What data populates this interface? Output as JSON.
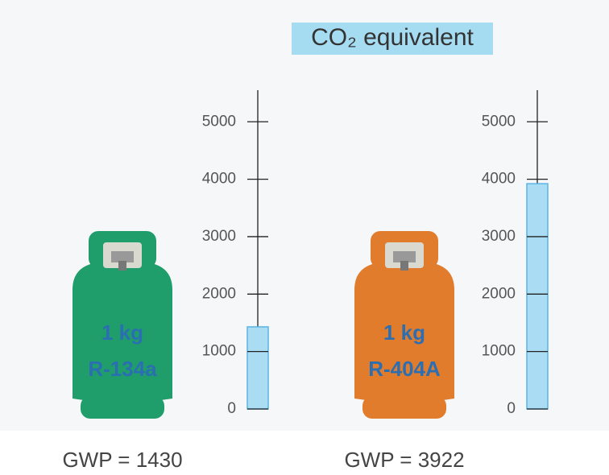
{
  "title": "CO₂ equivalent",
  "chart_data": [
    {
      "type": "bar",
      "annotations": [
        "1 kg",
        "R-134a"
      ],
      "cylinder_color": "#1f9e6b",
      "values": [
        1430
      ],
      "value_labels": [
        "GWP = 1430"
      ],
      "color": "#aadcf4",
      "ylim": [
        0,
        5550
      ],
      "yticks": [
        0,
        1000,
        2000,
        3000,
        4000,
        5000
      ]
    },
    {
      "type": "bar",
      "annotations": [
        "1 kg",
        "R-404A"
      ],
      "cylinder_color": "#e07c2c",
      "values": [
        3922
      ],
      "value_labels": [
        "GWP = 3922"
      ],
      "color": "#aadcf4",
      "ylim": [
        0,
        5550
      ],
      "yticks": [
        0,
        1000,
        2000,
        3000,
        4000,
        5000
      ]
    }
  ]
}
